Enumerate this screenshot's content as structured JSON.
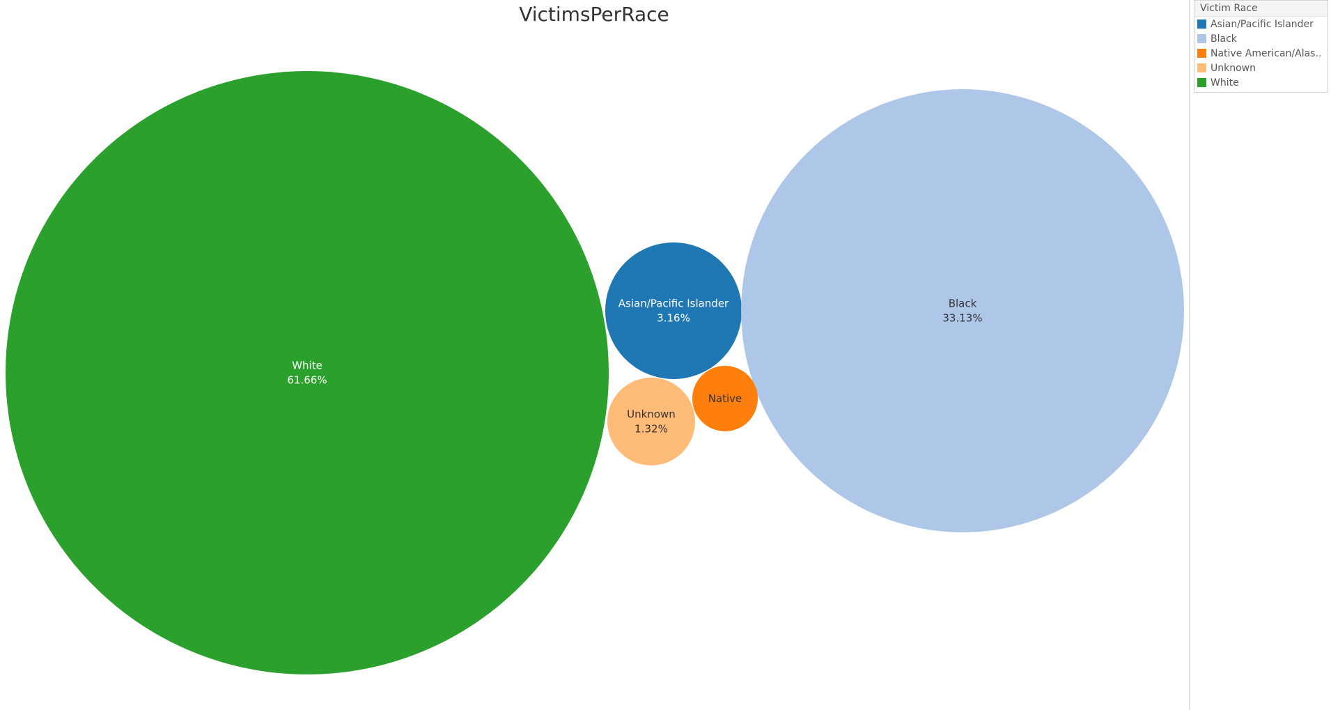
{
  "chart_data": {
    "type": "bubble",
    "title": "VictimsPerRace",
    "legend_title": "Victim Race",
    "legend_position": "top-right",
    "series": [
      {
        "name": "Asian/Pacific Islander",
        "legend_label": "Asian/Pacific Islander",
        "label_lines": [
          "Asian/Pacific Islander",
          "3.16%"
        ],
        "percent": 3.16,
        "color": "#1f77b4",
        "label_color": "#ffffff"
      },
      {
        "name": "Black",
        "legend_label": "Black",
        "label_lines": [
          "Black",
          "33.13%"
        ],
        "percent": 33.13,
        "color": "#aec7e8",
        "label_color": "#333333"
      },
      {
        "name": "Native American/Alaska Native",
        "legend_label": "Native American/Alas..",
        "label_lines": [
          "Native"
        ],
        "color": "#ff7f0e",
        "label_color": "#333333"
      },
      {
        "name": "Unknown",
        "legend_label": "Unknown",
        "label_lines": [
          "Unknown",
          "1.32%"
        ],
        "percent": 1.32,
        "color": "#ffbb78",
        "label_color": "#333333"
      },
      {
        "name": "White",
        "legend_label": "White",
        "label_lines": [
          "White",
          "61.66%"
        ],
        "percent": 61.66,
        "color": "#2ca02c",
        "label_color": "#ffffff"
      }
    ]
  }
}
